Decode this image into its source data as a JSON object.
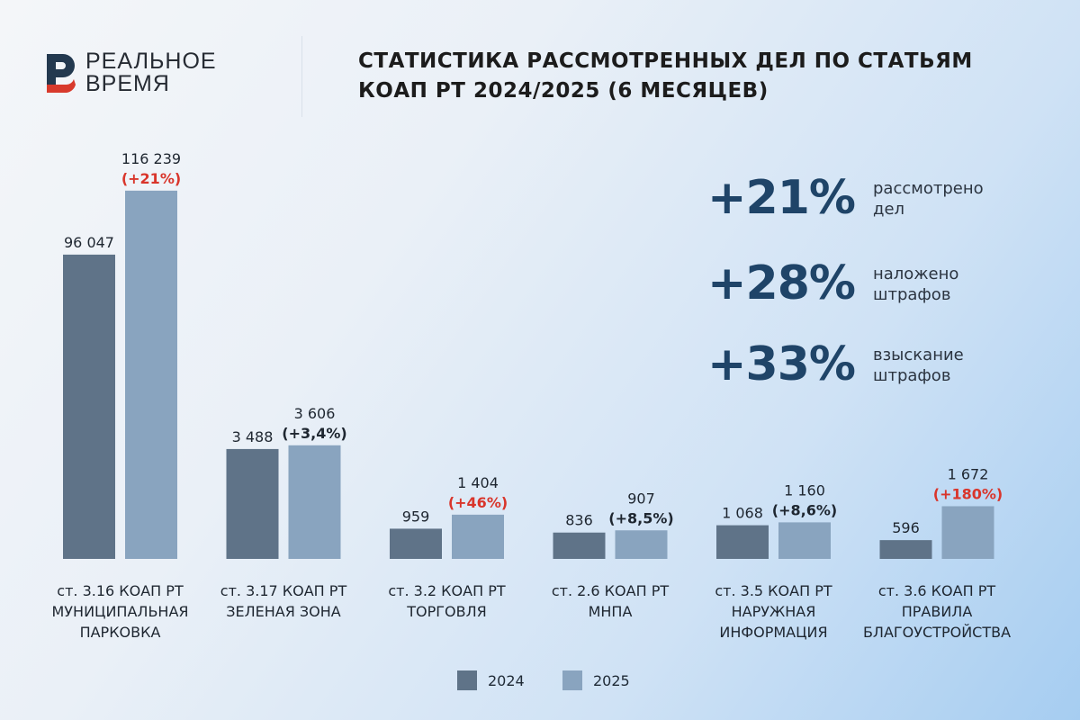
{
  "logo": {
    "line1": "РЕАЛЬНОЕ",
    "line2": "ВРЕМЯ"
  },
  "title": {
    "line1": "СТАТИСТИКА РАССМОТРЕННЫХ ДЕЛ ПО СТАТЬЯМ",
    "line2": "КОАП РТ 2024/2025 (6 МЕСЯЦЕВ)"
  },
  "highlights": [
    {
      "value": "+21%",
      "label1": "рассмотрено",
      "label2": "дел"
    },
    {
      "value": "+28%",
      "label1": "наложено",
      "label2": "штрафов"
    },
    {
      "value": "+33%",
      "label1": "взыскание",
      "label2": "штрафов"
    }
  ],
  "chart_data": {
    "type": "bar",
    "title": "СТАТИСТИКА РАССМОТРЕННЫХ ДЕЛ ПО СТАТЬЯМ КОАП РТ 2024/2025 (6 МЕСЯЦЕВ)",
    "categories": [
      {
        "line1": "ст. 3.16 КОАП РТ",
        "line2": "МУНИЦИПАЛЬНАЯ",
        "line3": "ПАРКОВКА"
      },
      {
        "line1": "ст. 3.17 КОАП РТ",
        "line2": "ЗЕЛЕНАЯ ЗОНА",
        "line3": ""
      },
      {
        "line1": "ст. 3.2 КОАП РТ",
        "line2": "ТОРГОВЛЯ",
        "line3": ""
      },
      {
        "line1": "ст. 2.6 КОАП РТ",
        "line2": "МНПА",
        "line3": ""
      },
      {
        "line1": "ст. 3.5 КОАП РТ",
        "line2": "НАРУЖНАЯ",
        "line3": "ИНФОРМАЦИЯ"
      },
      {
        "line1": "ст. 3.6 КОАП РТ",
        "line2": "ПРАВИЛА",
        "line3": "БЛАГОУСТРОЙСТВА"
      }
    ],
    "series": [
      {
        "name": "2024",
        "color": "#5f7388",
        "values": [
          96047,
          3488,
          959,
          836,
          1068,
          596
        ],
        "labels": [
          "96 047",
          "3 488",
          "959",
          "836",
          "1 068",
          "596"
        ]
      },
      {
        "name": "2025",
        "color": "#89a4bf",
        "values": [
          116239,
          3606,
          1404,
          907,
          1160,
          1672
        ],
        "labels": [
          "116 239",
          "3 606",
          "1 404",
          "907",
          "1 160",
          "1 672"
        ]
      }
    ],
    "changes": [
      "(+21%)",
      "(+3,4%)",
      "(+46%)",
      "(+8,5%)",
      "(+8,6%)",
      "(+180%)"
    ],
    "change_highlight": [
      true,
      false,
      true,
      false,
      false,
      true
    ],
    "highlight_color": "#d9352b",
    "normal_color": "#1e2630",
    "legend_position": "bottom",
    "grid": false
  }
}
